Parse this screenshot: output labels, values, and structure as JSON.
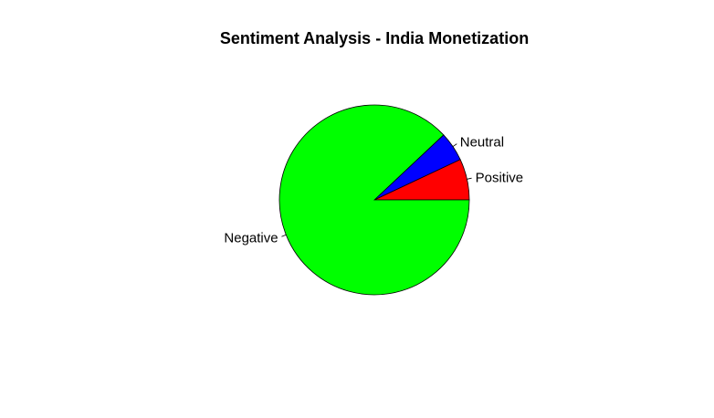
{
  "chart_data": {
    "type": "pie",
    "title": "Sentiment Analysis - India Monetization",
    "slices": [
      {
        "label": "Positive",
        "value": 7,
        "color": "#FF0000"
      },
      {
        "label": "Neutral",
        "value": 5,
        "color": "#0000FF"
      },
      {
        "label": "Negative",
        "value": 88,
        "color": "#00FF00"
      }
    ],
    "border_color": "#000000",
    "legend": "none"
  }
}
